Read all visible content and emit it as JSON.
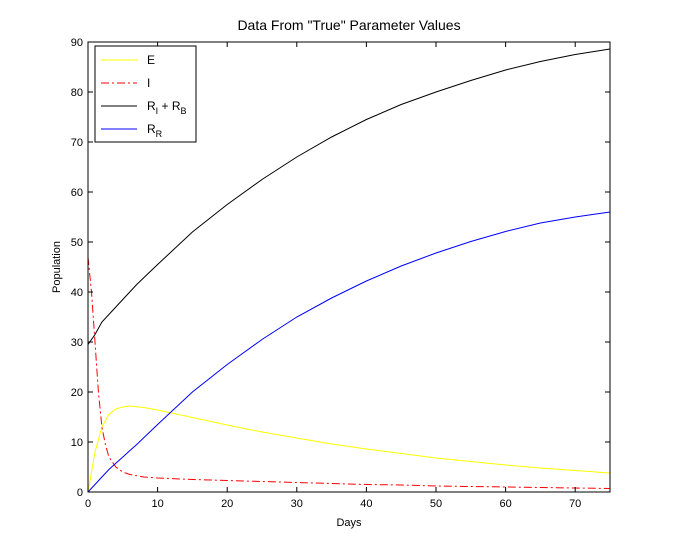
{
  "chart_data": {
    "type": "line",
    "title": "Data From \"True\" Parameter Values",
    "xlabel": "Days",
    "ylabel": "Population",
    "xlim": [
      0,
      75
    ],
    "ylim": [
      0,
      90
    ],
    "xticks": [
      "0",
      "10",
      "20",
      "30",
      "40",
      "50",
      "60",
      "70"
    ],
    "yticks": [
      "0",
      "10",
      "20",
      "30",
      "40",
      "50",
      "60",
      "70",
      "80",
      "90"
    ],
    "grid": false,
    "legend_position": "top-left",
    "series": [
      {
        "name": "E",
        "legend_main": "E",
        "legend_sub": "",
        "legend_tail": "",
        "legend_tail_sub": "",
        "color": "#ffff00",
        "dash": "solid",
        "x": [
          0,
          1,
          2,
          3,
          4,
          5,
          6,
          8,
          10,
          15,
          20,
          25,
          30,
          35,
          40,
          45,
          50,
          55,
          60,
          65,
          70,
          75
        ],
        "y": [
          0,
          8,
          13,
          15.5,
          16.6,
          17.0,
          17.2,
          16.9,
          16.4,
          14.9,
          13.4,
          12.0,
          10.8,
          9.6,
          8.6,
          7.7,
          6.8,
          6.1,
          5.4,
          4.8,
          4.3,
          3.8
        ]
      },
      {
        "name": "I",
        "legend_main": "I",
        "legend_sub": "",
        "legend_tail": "",
        "legend_tail_sub": "",
        "color": "#ff0000",
        "dash": "dashdot",
        "x": [
          0,
          0.5,
          1,
          1.5,
          2,
          2.5,
          3,
          4,
          5,
          6,
          8,
          10,
          15,
          20,
          25,
          30,
          35,
          40,
          45,
          50,
          55,
          60,
          65,
          70,
          75
        ],
        "y": [
          47,
          40,
          30,
          20,
          13,
          9.5,
          7,
          5,
          4,
          3.5,
          3.0,
          2.8,
          2.5,
          2.3,
          2.1,
          1.9,
          1.7,
          1.5,
          1.4,
          1.2,
          1.1,
          1.0,
          0.9,
          0.8,
          0.7
        ]
      },
      {
        "name": "R_I + R_B",
        "legend_main": "R",
        "legend_sub": "I",
        "legend_tail": " + R",
        "legend_tail_sub": "B",
        "color": "#000000",
        "dash": "solid",
        "x": [
          0,
          1,
          2,
          3,
          5,
          7,
          10,
          15,
          20,
          25,
          30,
          35,
          40,
          45,
          50,
          55,
          60,
          65,
          70,
          75
        ],
        "y": [
          29.5,
          31.5,
          34,
          35.5,
          38.5,
          41.5,
          45.5,
          52,
          57.5,
          62.5,
          67,
          71,
          74.5,
          77.5,
          80,
          82.3,
          84.4,
          86.1,
          87.5,
          88.6
        ]
      },
      {
        "name": "R_R",
        "legend_main": "R",
        "legend_sub": "R",
        "legend_tail": "",
        "legend_tail_sub": "",
        "color": "#0000ff",
        "dash": "solid",
        "x": [
          0,
          1,
          2,
          3,
          5,
          7,
          10,
          15,
          20,
          25,
          30,
          35,
          40,
          45,
          50,
          55,
          60,
          65,
          70,
          75
        ],
        "y": [
          0,
          1.5,
          3.0,
          4.5,
          7.0,
          9.5,
          13.5,
          20,
          25.5,
          30.5,
          35,
          38.8,
          42.2,
          45.2,
          47.8,
          50.1,
          52.1,
          53.8,
          55.0,
          56.0
        ]
      }
    ]
  }
}
